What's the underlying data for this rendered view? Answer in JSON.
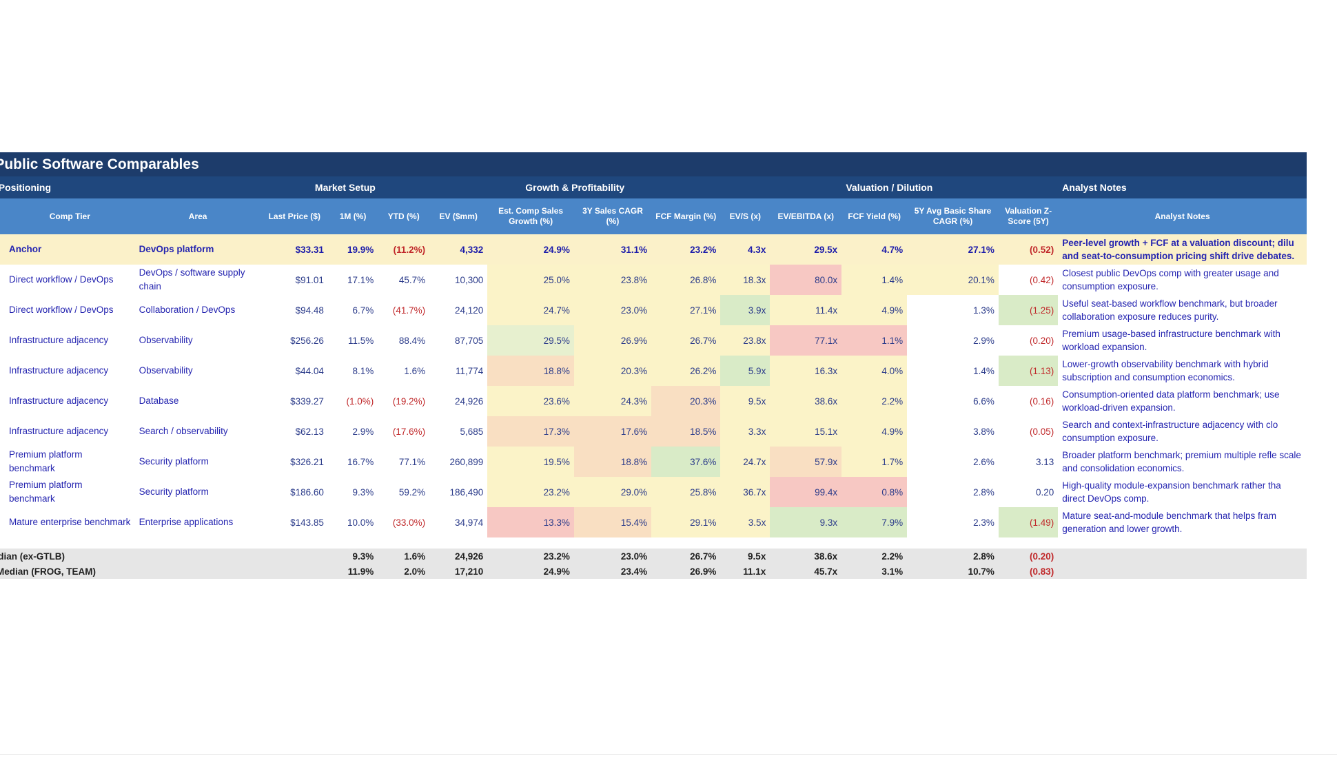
{
  "title": "ab Public Software Comparables",
  "groups": {
    "company": "any / Positioning",
    "market": "Market Setup",
    "growth": "Growth & Profitability",
    "valuation": "Valuation / Dilution",
    "notes": "Analyst Notes"
  },
  "headers": [
    "Comp Tier",
    "Area",
    "Last Price ($)",
    "1M (%)",
    "YTD (%)",
    "EV ($mm)",
    "Est. Comp Sales Growth (%)",
    "3Y Sales CAGR (%)",
    "FCF Margin (%)",
    "EV/S (x)",
    "EV/EBITDA (x)",
    "FCF Yield (%)",
    "5Y Avg Basic Share CAGR (%)",
    "Valuation Z-Score (5Y)",
    "Analyst Notes"
  ],
  "rows": [
    {
      "tier": "Anchor",
      "area": "DevOps platform",
      "price": "$33.31",
      "m1": "19.9%",
      "ytd": "(11.2%)",
      "ev": "4,332",
      "comp": "24.9%",
      "cagr3": "31.1%",
      "fcfm": "23.2%",
      "evs": "4.3x",
      "evebitda": "29.5x",
      "fcfy": "4.7%",
      "share": "27.1%",
      "z": "(0.52)",
      "note": "Peer-level growth + FCF at a valuation discount; dilu and seat-to-consumption pricing shift drive debates."
    },
    {
      "tier": "Direct workflow / DevOps",
      "area": "DevOps / software supply chain",
      "price": "$91.01",
      "m1": "17.1%",
      "ytd": "45.7%",
      "ev": "10,300",
      "comp": "25.0%",
      "cagr3": "23.8%",
      "fcfm": "26.8%",
      "evs": "18.3x",
      "evebitda": "80.0x",
      "fcfy": "1.4%",
      "share": "20.1%",
      "z": "(0.42)",
      "note": "Closest public DevOps comp with greater usage and consumption exposure."
    },
    {
      "tier": "Direct workflow / DevOps",
      "area": "Collaboration / DevOps",
      "price": "$94.48",
      "m1": "6.7%",
      "ytd": "(41.7%)",
      "ev": "24,120",
      "comp": "24.7%",
      "cagr3": "23.0%",
      "fcfm": "27.1%",
      "evs": "3.9x",
      "evebitda": "11.4x",
      "fcfy": "4.9%",
      "share": "1.3%",
      "z": "(1.25)",
      "note": "Useful seat-based workflow benchmark, but broader collaboration exposure reduces purity."
    },
    {
      "tier": "Infrastructure adjacency",
      "area": "Observability",
      "price": "$256.26",
      "m1": "11.5%",
      "ytd": "88.4%",
      "ev": "87,705",
      "comp": "29.5%",
      "cagr3": "26.9%",
      "fcfm": "26.7%",
      "evs": "23.8x",
      "evebitda": "77.1x",
      "fcfy": "1.1%",
      "share": "2.9%",
      "z": "(0.20)",
      "note": "Premium usage-based infrastructure benchmark with workload expansion."
    },
    {
      "tier": "Infrastructure adjacency",
      "area": "Observability",
      "price": "$44.04",
      "m1": "8.1%",
      "ytd": "1.6%",
      "ev": "11,774",
      "comp": "18.8%",
      "cagr3": "20.3%",
      "fcfm": "26.2%",
      "evs": "5.9x",
      "evebitda": "16.3x",
      "fcfy": "4.0%",
      "share": "1.4%",
      "z": "(1.13)",
      "note": "Lower-growth observability benchmark with hybrid subscription and consumption economics."
    },
    {
      "tier": "Infrastructure adjacency",
      "area": "Database",
      "price": "$339.27",
      "m1": "(1.0%)",
      "ytd": "(19.2%)",
      "ev": "24,926",
      "comp": "23.6%",
      "cagr3": "24.3%",
      "fcfm": "20.3%",
      "evs": "9.5x",
      "evebitda": "38.6x",
      "fcfy": "2.2%",
      "share": "6.6%",
      "z": "(0.16)",
      "note": "Consumption-oriented data platform benchmark; use workload-driven expansion."
    },
    {
      "tier": "Infrastructure adjacency",
      "area": "Search / observability",
      "price": "$62.13",
      "m1": "2.9%",
      "ytd": "(17.6%)",
      "ev": "5,685",
      "comp": "17.3%",
      "cagr3": "17.6%",
      "fcfm": "18.5%",
      "evs": "3.3x",
      "evebitda": "15.1x",
      "fcfy": "4.9%",
      "share": "3.8%",
      "z": "(0.05)",
      "note": "Search and context-infrastructure adjacency with clo consumption exposure."
    },
    {
      "tier": "Premium platform benchmark",
      "area": "Security platform",
      "price": "$326.21",
      "m1": "16.7%",
      "ytd": "77.1%",
      "ev": "260,899",
      "comp": "19.5%",
      "cagr3": "18.8%",
      "fcfm": "37.6%",
      "evs": "24.7x",
      "evebitda": "57.9x",
      "fcfy": "1.7%",
      "share": "2.6%",
      "z": "3.13",
      "note": "Broader platform benchmark; premium multiple refle scale and consolidation economics."
    },
    {
      "tier": "Premium platform benchmark",
      "area": "Security platform",
      "price": "$186.60",
      "m1": "9.3%",
      "ytd": "59.2%",
      "ev": "186,490",
      "comp": "23.2%",
      "cagr3": "29.0%",
      "fcfm": "25.8%",
      "evs": "36.7x",
      "evebitda": "99.4x",
      "fcfy": "0.8%",
      "share": "2.8%",
      "z": "0.20",
      "note": "High-quality module-expansion benchmark rather tha direct DevOps comp."
    },
    {
      "tier": "Mature enterprise benchmark",
      "area": "Enterprise applications",
      "price": "$143.85",
      "m1": "10.0%",
      "ytd": "(33.0%)",
      "ev": "34,974",
      "comp": "13.3%",
      "cagr3": "15.4%",
      "fcfm": "29.1%",
      "evs": "3.5x",
      "evebitda": "9.3x",
      "fcfy": "7.9%",
      "share": "2.3%",
      "z": "(1.49)",
      "note": "Mature seat-and-module benchmark that helps fram generation and lower growth."
    }
  ],
  "medians": [
    {
      "label": "er Median (ex-GTLB)",
      "m1": "9.3%",
      "ytd": "1.6%",
      "ev": "24,926",
      "comp": "23.2%",
      "cagr3": "23.0%",
      "fcfm": "26.7%",
      "evs": "9.5x",
      "evebitda": "38.6x",
      "fcfy": "2.2%",
      "share": "2.8%",
      "z": "(0.20)"
    },
    {
      "label": "Peer Median (FROG, TEAM)",
      "m1": "11.9%",
      "ytd": "2.0%",
      "ev": "17,210",
      "comp": "24.9%",
      "cagr3": "23.4%",
      "fcfm": "26.9%",
      "evs": "11.1x",
      "evebitda": "45.7x",
      "fcfy": "3.1%",
      "share": "10.7%",
      "z": "(0.83)"
    }
  ],
  "colors": {
    "title_bg": "#1d3c6b",
    "group_bg": "#1f477d",
    "header_bg": "#4a86c8",
    "negative": "#c0282a",
    "text_blue": "#2424b0",
    "heat_green": "#d9ebc7",
    "heat_yellow": "#fbf3c8",
    "heat_red": "#f7c8c3"
  }
}
